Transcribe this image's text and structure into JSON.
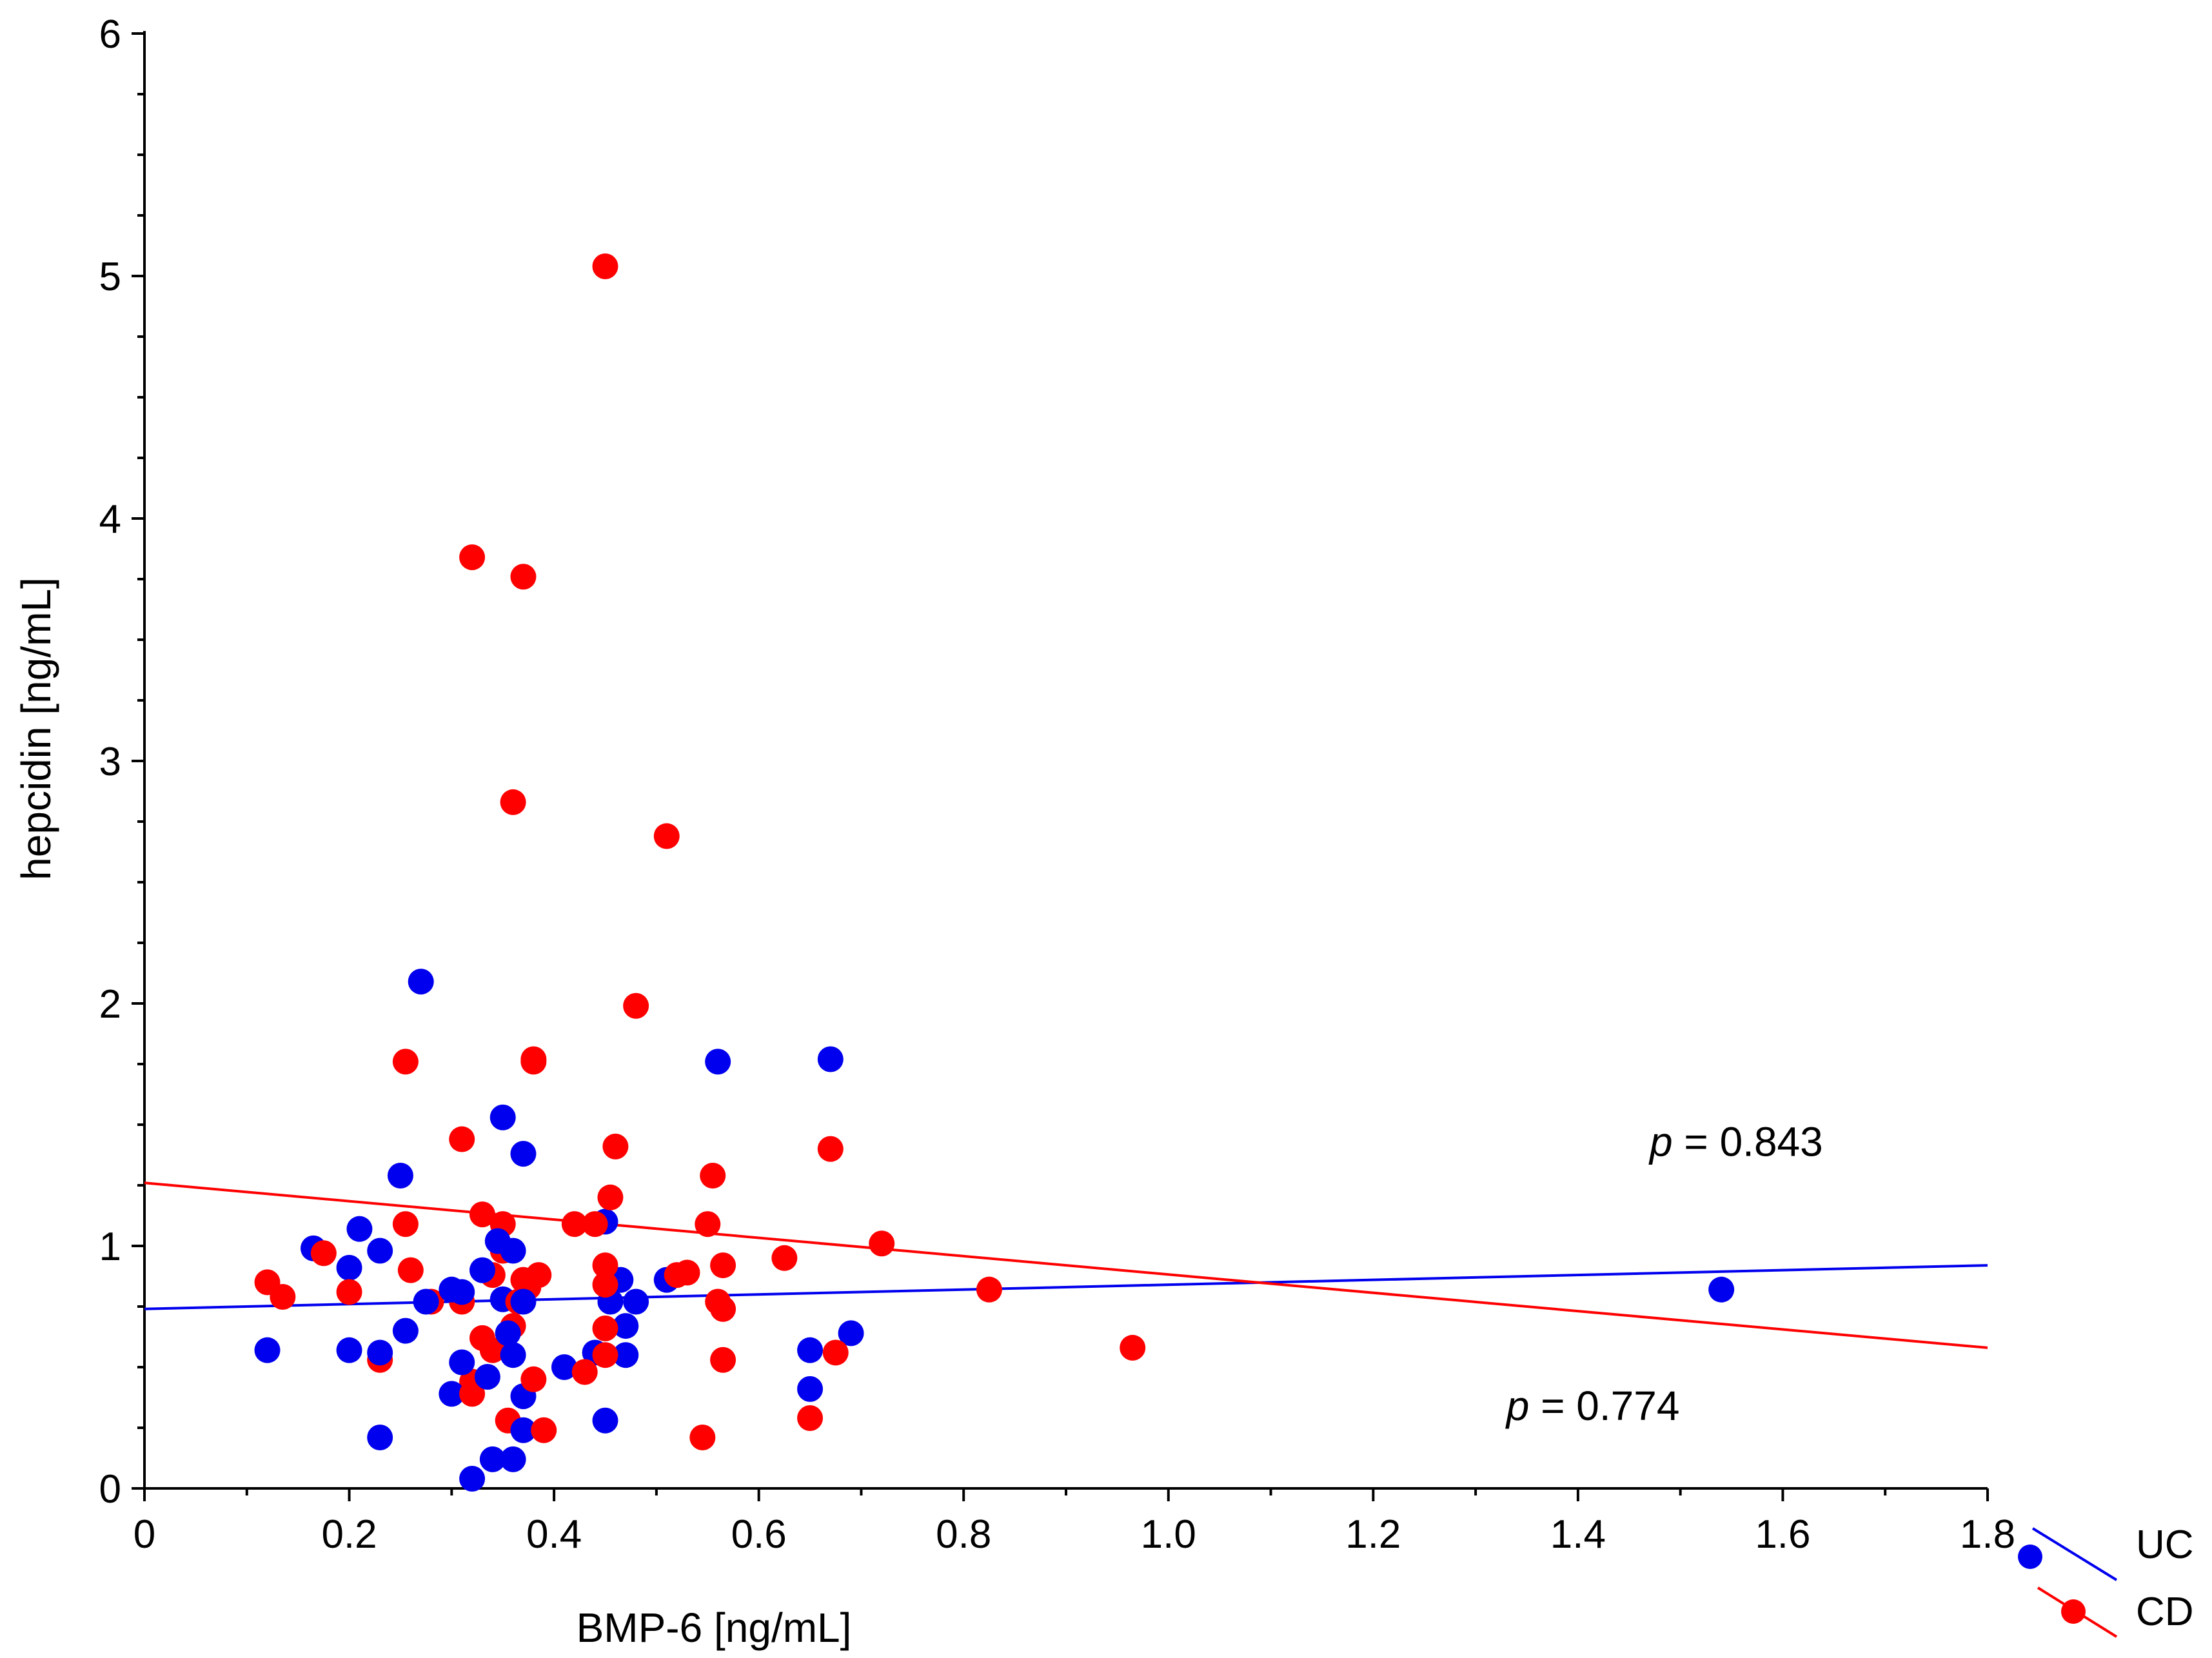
{
  "chart_data": {
    "type": "scatter",
    "title": "",
    "xlabel": "BMP-6 [ng/mL]",
    "ylabel": "hepcidin [ng/mL]",
    "xlim": [
      0,
      1.8
    ],
    "ylim": [
      0,
      6
    ],
    "x_major_ticks": [
      0,
      0.2,
      0.4,
      0.6,
      0.8,
      1.0,
      1.2,
      1.4,
      1.6,
      1.8
    ],
    "x_tick_labels": [
      "0",
      "0.2",
      "0.4",
      "0.6",
      "0.8",
      "1.0",
      "1.2",
      "1.4",
      "1.6",
      "1.8"
    ],
    "x_minor_step": 0.1,
    "y_major_ticks": [
      0,
      1,
      2,
      3,
      4,
      5,
      6
    ],
    "y_tick_labels": [
      "0",
      "1",
      "2",
      "3",
      "4",
      "5",
      "6"
    ],
    "y_minor_step": 0.25,
    "grid": false,
    "legend_position": "bottom-right",
    "series": [
      {
        "name": "UC",
        "color": "#0000ee",
        "fit_line": {
          "x": [
            0,
            1.8
          ],
          "y": [
            0.74,
            0.92
          ]
        },
        "p_value": "0.843",
        "annotation": {
          "x": 1.47,
          "y": 1.43
        },
        "points": [
          [
            0.12,
            0.57
          ],
          [
            0.165,
            0.99
          ],
          [
            0.2,
            0.91
          ],
          [
            0.2,
            0.57
          ],
          [
            0.21,
            1.07
          ],
          [
            0.23,
            0.98
          ],
          [
            0.23,
            0.56
          ],
          [
            0.23,
            0.21
          ],
          [
            0.25,
            1.29
          ],
          [
            0.255,
            0.65
          ],
          [
            0.27,
            2.09
          ],
          [
            0.275,
            0.77
          ],
          [
            0.3,
            0.82
          ],
          [
            0.3,
            0.39
          ],
          [
            0.31,
            0.81
          ],
          [
            0.31,
            0.52
          ],
          [
            0.32,
            0.04
          ],
          [
            0.33,
            0.9
          ],
          [
            0.335,
            0.46
          ],
          [
            0.34,
            0.12
          ],
          [
            0.345,
            1.02
          ],
          [
            0.35,
            1.53
          ],
          [
            0.35,
            0.78
          ],
          [
            0.355,
            0.64
          ],
          [
            0.36,
            0.98
          ],
          [
            0.36,
            0.55
          ],
          [
            0.36,
            0.12
          ],
          [
            0.37,
            1.38
          ],
          [
            0.37,
            0.77
          ],
          [
            0.37,
            0.38
          ],
          [
            0.37,
            0.24
          ],
          [
            0.41,
            0.5
          ],
          [
            0.44,
            0.56
          ],
          [
            0.45,
            1.1
          ],
          [
            0.45,
            0.28
          ],
          [
            0.455,
            0.77
          ],
          [
            0.465,
            0.86
          ],
          [
            0.47,
            0.67
          ],
          [
            0.47,
            0.55
          ],
          [
            0.48,
            0.77
          ],
          [
            0.51,
            0.86
          ],
          [
            0.56,
            1.76
          ],
          [
            0.65,
            0.57
          ],
          [
            0.65,
            0.41
          ],
          [
            0.67,
            1.77
          ],
          [
            0.69,
            0.64
          ],
          [
            1.54,
            0.82
          ]
        ]
      },
      {
        "name": "CD",
        "color": "#ff0000",
        "fit_line": {
          "x": [
            0,
            1.8
          ],
          "y": [
            1.26,
            0.58
          ]
        },
        "p_value": "0.774",
        "annotation": {
          "x": 1.33,
          "y": 0.34
        },
        "points": [
          [
            0.12,
            0.85
          ],
          [
            0.135,
            0.79
          ],
          [
            0.175,
            0.97
          ],
          [
            0.2,
            0.81
          ],
          [
            0.23,
            0.53
          ],
          [
            0.255,
            1.76
          ],
          [
            0.255,
            1.09
          ],
          [
            0.26,
            0.9
          ],
          [
            0.28,
            0.77
          ],
          [
            0.31,
            1.44
          ],
          [
            0.31,
            0.77
          ],
          [
            0.32,
            3.84
          ],
          [
            0.32,
            0.44
          ],
          [
            0.32,
            0.39
          ],
          [
            0.33,
            1.13
          ],
          [
            0.33,
            0.62
          ],
          [
            0.34,
            0.88
          ],
          [
            0.34,
            0.57
          ],
          [
            0.35,
            1.09
          ],
          [
            0.35,
            0.98
          ],
          [
            0.355,
            0.28
          ],
          [
            0.36,
            2.83
          ],
          [
            0.36,
            0.67
          ],
          [
            0.365,
            0.77
          ],
          [
            0.37,
            3.76
          ],
          [
            0.37,
            0.86
          ],
          [
            0.375,
            0.83
          ],
          [
            0.38,
            1.77
          ],
          [
            0.38,
            1.76
          ],
          [
            0.38,
            0.45
          ],
          [
            0.385,
            0.88
          ],
          [
            0.39,
            0.24
          ],
          [
            0.42,
            1.09
          ],
          [
            0.43,
            0.48
          ],
          [
            0.44,
            1.09
          ],
          [
            0.45,
            5.04
          ],
          [
            0.45,
            0.92
          ],
          [
            0.45,
            0.84
          ],
          [
            0.45,
            0.66
          ],
          [
            0.45,
            0.55
          ],
          [
            0.455,
            1.2
          ],
          [
            0.46,
            1.41
          ],
          [
            0.48,
            1.99
          ],
          [
            0.51,
            2.69
          ],
          [
            0.52,
            0.88
          ],
          [
            0.53,
            0.89
          ],
          [
            0.545,
            0.21
          ],
          [
            0.55,
            1.09
          ],
          [
            0.555,
            1.29
          ],
          [
            0.56,
            0.77
          ],
          [
            0.565,
            0.92
          ],
          [
            0.565,
            0.74
          ],
          [
            0.565,
            0.53
          ],
          [
            0.625,
            0.95
          ],
          [
            0.65,
            0.29
          ],
          [
            0.67,
            1.4
          ],
          [
            0.675,
            0.56
          ],
          [
            0.72,
            1.01
          ],
          [
            0.825,
            0.82
          ],
          [
            0.965,
            0.58
          ]
        ]
      }
    ]
  },
  "annotations": {
    "p_symbol": "p",
    "p_equals": " = "
  }
}
